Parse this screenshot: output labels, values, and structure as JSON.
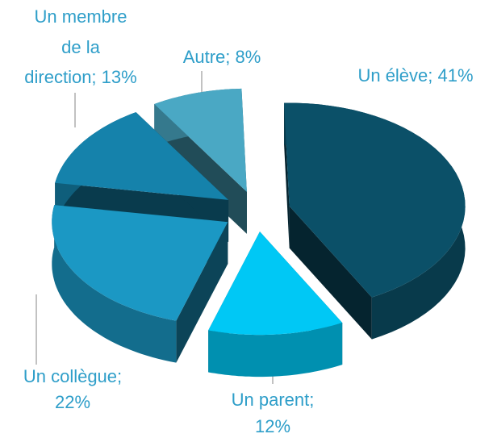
{
  "chart_data": {
    "type": "pie3d",
    "values": [
      41,
      12,
      22,
      13,
      8
    ],
    "value_labels": [
      [
        "Un élève; 41%"
      ],
      [
        "Un parent;",
        "12%"
      ],
      [
        "Un collègue;",
        "22%"
      ],
      [
        "Un membre",
        "de la",
        "direction; 13%"
      ],
      [
        "Autre; 8%"
      ]
    ],
    "colors": [
      "#0b5068",
      "#00c8f5",
      "#1b98c4",
      "#1582ab",
      "#4aa8c4"
    ]
  }
}
